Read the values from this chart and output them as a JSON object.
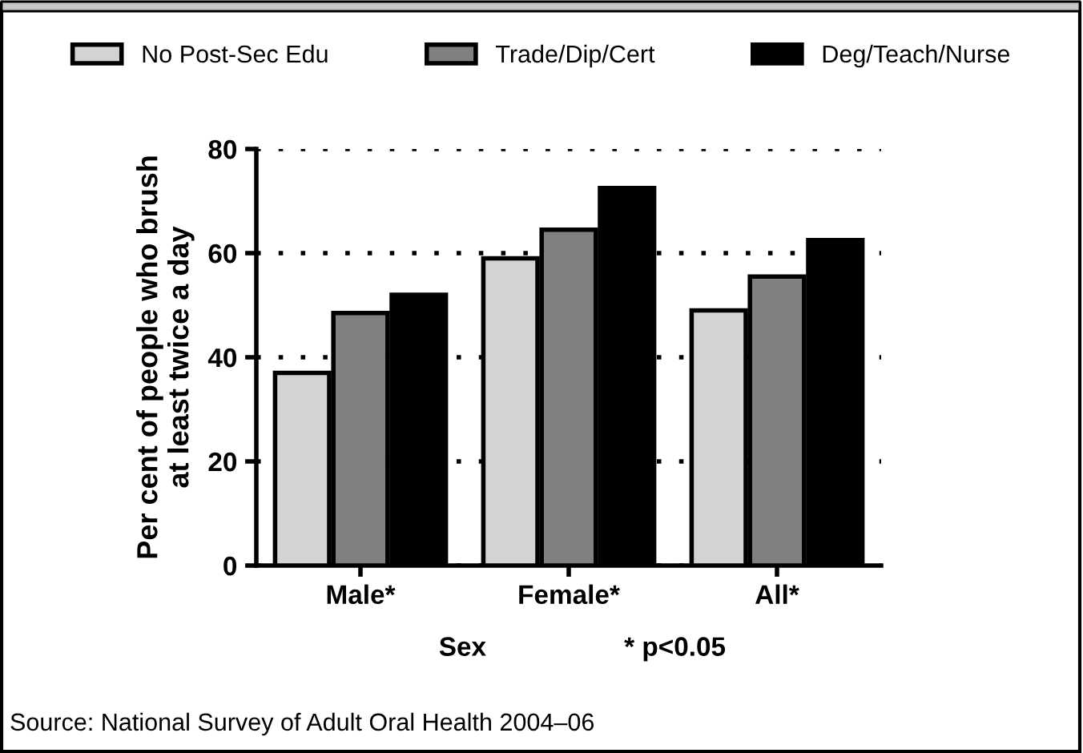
{
  "chart_data": {
    "type": "bar",
    "categories": [
      "Male*",
      "Female*",
      "All*"
    ],
    "series": [
      {
        "name": "No Post-Sec Edu",
        "color": "#d3d3d3",
        "values": [
          37,
          59,
          49
        ]
      },
      {
        "name": "Trade/Dip/Cert",
        "color": "#808080",
        "values": [
          48.5,
          64.5,
          55.5
        ]
      },
      {
        "name": "Deg/Teach/Nurse",
        "color": "#000000",
        "values": [
          52,
          72.5,
          62.5
        ]
      }
    ],
    "xlabel": "Sex",
    "ylabel": "Per cent of people who brush\nat least twice a day",
    "ylim": [
      0,
      80
    ],
    "yticks": [
      0,
      20,
      40,
      60,
      80
    ],
    "grid": "y",
    "legend": "top",
    "annotations": [
      "* p<0.05",
      "Source: National Survey of Adult Oral Health 2004–06"
    ]
  }
}
